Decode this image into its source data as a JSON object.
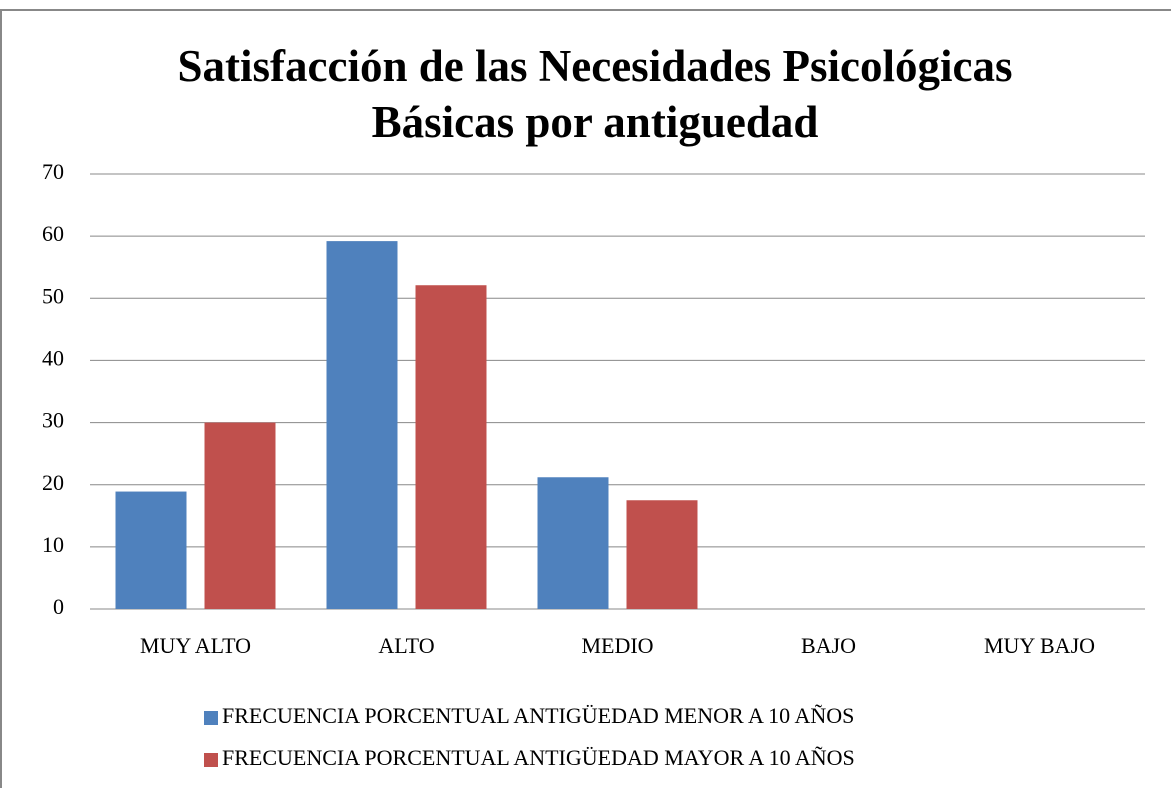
{
  "chart_data": {
    "type": "bar",
    "title": "Satisfacción de las Necesidades Psicológicas Básicas por antiguedad",
    "categories": [
      "MUY ALTO",
      "ALTO",
      "MEDIO",
      "BAJO",
      "MUY BAJO"
    ],
    "series": [
      {
        "name": "FRECUENCIA PORCENTUAL ANTIGÜEDAD MENOR A 10 AÑOS",
        "color": "#4f81bd",
        "values": [
          18.9,
          59.2,
          21.2,
          0,
          0
        ]
      },
      {
        "name": "FRECUENCIA PORCENTUAL ANTIGÜEDAD MAYOR A 10 AÑOS",
        "color": "#c0504d",
        "values": [
          30,
          52.1,
          17.5,
          0,
          0
        ]
      }
    ],
    "ylim": [
      0,
      70
    ],
    "yticks": [
      0,
      10,
      20,
      30,
      40,
      50,
      60,
      70
    ],
    "grid": true,
    "legend": "bottom"
  }
}
